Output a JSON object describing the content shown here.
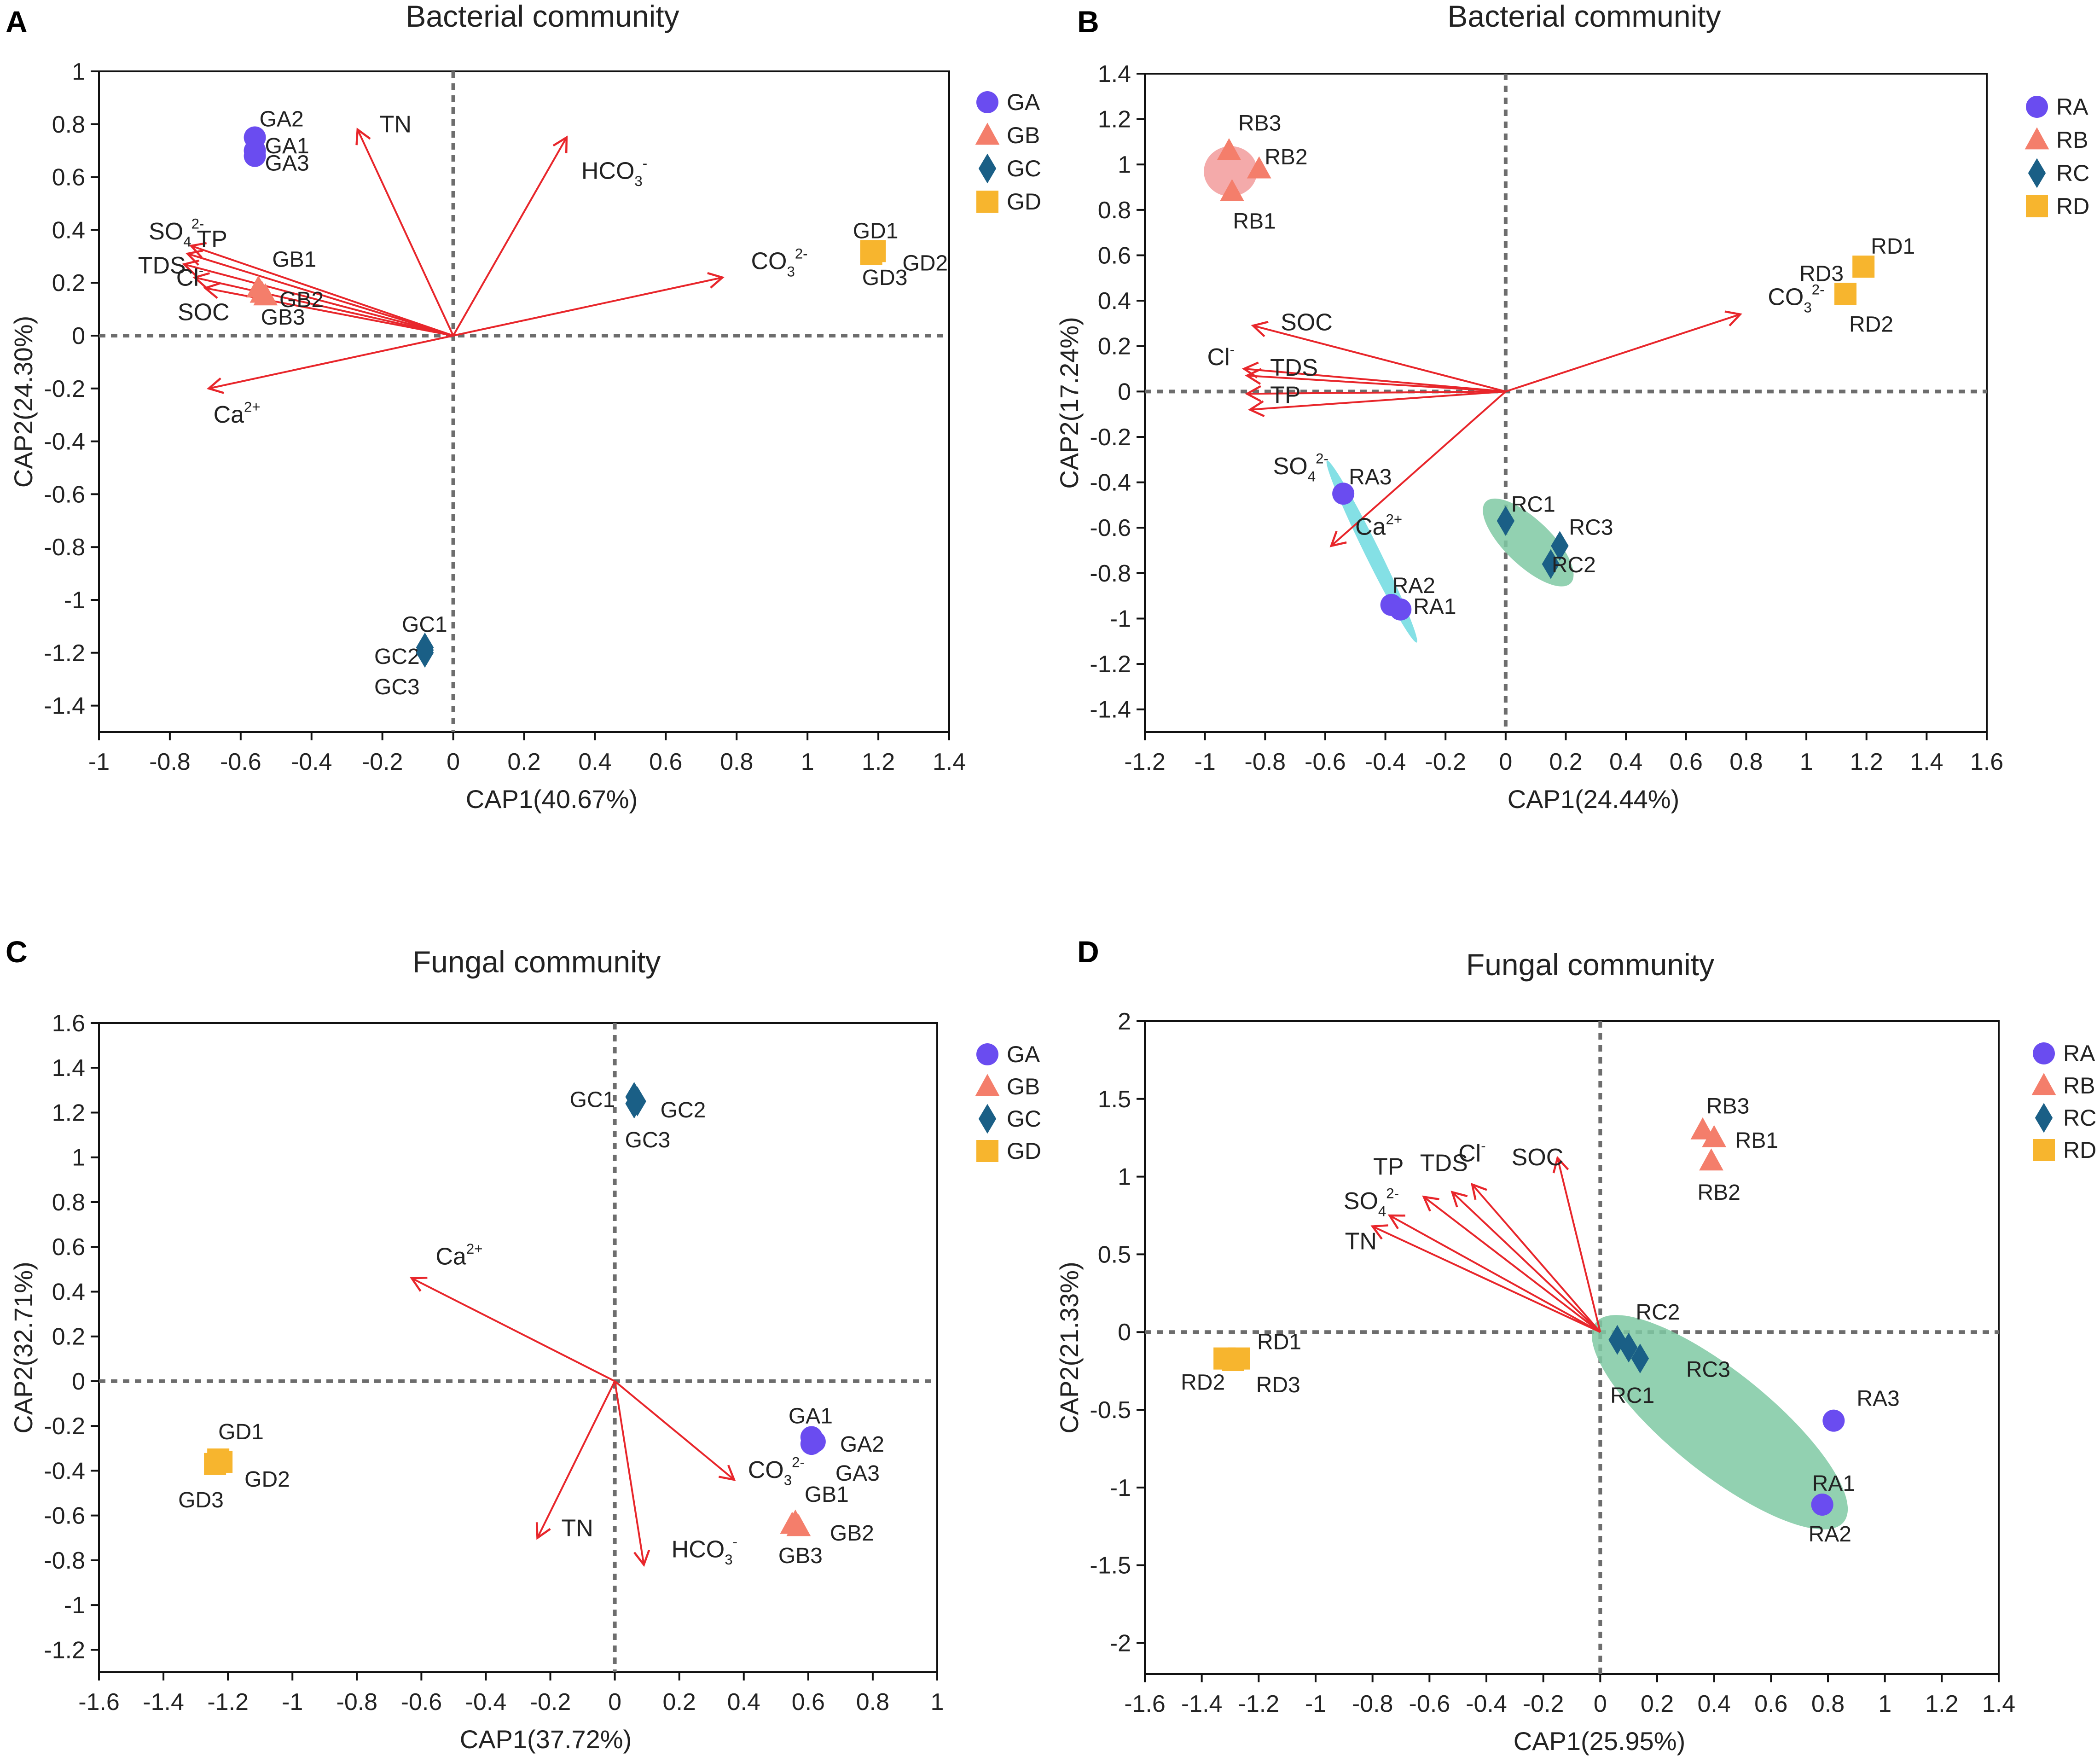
{
  "colors": {
    "arrow": "#e8262b",
    "circle": "#6a4cf0",
    "triangle": "#f47e6b",
    "diamond": "#1a5f86",
    "square": "#f7b52e",
    "dashed": "#6d6d6d",
    "ellipse_cyan": "#6fdbe0",
    "ellipse_green": "#7fc9a3",
    "ellipse_pink": "#f29b9b"
  },
  "chart_data": [
    {
      "panel_letter": "A",
      "type": "scatter",
      "title": "Bacterial community",
      "xlabel": "CAP1(40.67%)",
      "ylabel": "CAP2(24.30%)",
      "xlim": [
        -1,
        1.4
      ],
      "ylim": [
        -1.5,
        1
      ],
      "xticks": [
        "-1",
        "-0.8",
        "-0.6",
        "-0.4",
        "-0.2",
        "0",
        "0.2",
        "0.4",
        "0.6",
        "0.8",
        "1",
        "1.2",
        "1.4"
      ],
      "yticks": [
        "1",
        "0.8",
        "0.6",
        "0.4",
        "0.2",
        "0",
        "-0.2",
        "-0.4",
        "-0.6",
        "-0.8",
        "-1",
        "-1.2",
        "-1.4"
      ],
      "legend": [
        {
          "label": "GA",
          "shape": "circle"
        },
        {
          "label": "GB",
          "shape": "triangle"
        },
        {
          "label": "GC",
          "shape": "diamond"
        },
        {
          "label": "GD",
          "shape": "square"
        }
      ],
      "groups": [
        {
          "name": "GA",
          "shape": "circle",
          "points": [
            {
              "label": "GA2",
              "x": -0.56,
              "y": 0.75
            },
            {
              "label": "GA1",
              "x": -0.56,
              "y": 0.7
            },
            {
              "label": "GA3",
              "x": -0.56,
              "y": 0.68
            }
          ]
        },
        {
          "name": "GB",
          "shape": "triangle",
          "points": [
            {
              "label": "GB1",
              "x": -0.55,
              "y": 0.18
            },
            {
              "label": "GB2",
              "x": -0.54,
              "y": 0.16
            },
            {
              "label": "GB3",
              "x": -0.53,
              "y": 0.15
            }
          ]
        },
        {
          "name": "GC",
          "shape": "diamond",
          "points": [
            {
              "label": "GC1",
              "x": -0.08,
              "y": -1.18
            },
            {
              "label": "GC2",
              "x": -0.08,
              "y": -1.19
            },
            {
              "label": "GC3",
              "x": -0.08,
              "y": -1.2
            }
          ]
        },
        {
          "name": "GD",
          "shape": "square",
          "points": [
            {
              "label": "GD1",
              "x": 1.18,
              "y": 0.32
            },
            {
              "label": "GD2",
              "x": 1.19,
              "y": 0.32
            },
            {
              "label": "GD3",
              "x": 1.18,
              "y": 0.31
            }
          ]
        }
      ],
      "arrows": [
        {
          "name": "TN",
          "base": "TN",
          "sup": "",
          "sub": "",
          "x": -0.27,
          "y": 0.78
        },
        {
          "name": "HCO3-",
          "base": "HCO",
          "sub": "3",
          "sup": "-",
          "x": 0.32,
          "y": 0.75
        },
        {
          "name": "CO32-",
          "base": "CO",
          "sub": "3",
          "sup": "2-",
          "x": 0.76,
          "y": 0.22
        },
        {
          "name": "SO42-",
          "base": "SO",
          "sub": "4",
          "sup": "2-",
          "x": -0.74,
          "y": 0.34
        },
        {
          "name": "TP",
          "base": "TP",
          "sub": "",
          "sup": "",
          "x": -0.75,
          "y": 0.31
        },
        {
          "name": "TDS",
          "base": "TDS",
          "sub": "",
          "sup": "",
          "x": -0.76,
          "y": 0.27
        },
        {
          "name": "Cl-",
          "base": "Cl",
          "sub": "",
          "sup": "-",
          "x": -0.73,
          "y": 0.22
        },
        {
          "name": "SOC",
          "base": "SOC",
          "sub": "",
          "sup": "",
          "x": -0.7,
          "y": 0.18
        },
        {
          "name": "Ca2+",
          "base": "Ca",
          "sub": "",
          "sup": "2+",
          "x": -0.69,
          "y": -0.2
        }
      ]
    },
    {
      "panel_letter": "B",
      "type": "scatter",
      "title": "Bacterial community",
      "xlabel": "CAP1(24.44%)",
      "ylabel": "CAP2(17.24%)",
      "xlim": [
        -1.2,
        1.6
      ],
      "ylim": [
        -1.5,
        1.4
      ],
      "xticks": [
        "-1.2",
        "-1",
        "-0.8",
        "-0.6",
        "-0.4",
        "-0.2",
        "0",
        "0.2",
        "0.4",
        "0.6",
        "0.8",
        "1",
        "1.2",
        "1.4",
        "1.6"
      ],
      "yticks": [
        "1.4",
        "1.2",
        "1",
        "0.8",
        "0.6",
        "0.4",
        "0.2",
        "0",
        "-0.2",
        "-0.4",
        "-0.6",
        "-0.8",
        "-1",
        "-1.2",
        "-1.4"
      ],
      "legend": [
        {
          "label": "RA",
          "shape": "circle"
        },
        {
          "label": "RB",
          "shape": "triangle"
        },
        {
          "label": "RC",
          "shape": "diamond"
        },
        {
          "label": "RD",
          "shape": "square"
        }
      ],
      "groups": [
        {
          "name": "RA",
          "shape": "circle",
          "points": [
            {
              "label": "RA3",
              "x": -0.54,
              "y": -0.45
            },
            {
              "label": "RA2",
              "x": -0.38,
              "y": -0.94
            },
            {
              "label": "RA1",
              "x": -0.35,
              "y": -0.96
            }
          ]
        },
        {
          "name": "RB",
          "shape": "triangle",
          "points": [
            {
              "label": "RB3",
              "x": -0.92,
              "y": 1.06
            },
            {
              "label": "RB2",
              "x": -0.82,
              "y": 0.98
            },
            {
              "label": "RB1",
              "x": -0.91,
              "y": 0.88
            }
          ]
        },
        {
          "name": "RC",
          "shape": "diamond",
          "points": [
            {
              "label": "RC1",
              "x": 0.0,
              "y": -0.57
            },
            {
              "label": "RC3",
              "x": 0.18,
              "y": -0.68
            },
            {
              "label": "RC2",
              "x": 0.15,
              "y": -0.76
            }
          ]
        },
        {
          "name": "RD",
          "shape": "square",
          "points": [
            {
              "label": "RD3",
              "x": 1.13,
              "y": 0.43
            },
            {
              "label": "RD1",
              "x": 1.19,
              "y": 0.55
            },
            {
              "label": "RD2",
              "x": 1.13,
              "y": 0.43
            }
          ]
        }
      ],
      "ellipses": [
        {
          "group": "RA",
          "color_key": "ellipse_cyan"
        },
        {
          "group": "RB",
          "color_key": "ellipse_pink"
        },
        {
          "group": "RC",
          "color_key": "ellipse_green"
        }
      ],
      "arrows": [
        {
          "name": "CO32-",
          "base": "CO",
          "sub": "3",
          "sup": "2-",
          "x": 0.78,
          "y": 0.34
        },
        {
          "name": "SOC",
          "base": "SOC",
          "sub": "",
          "sup": "",
          "x": -0.84,
          "y": 0.29
        },
        {
          "name": "Cl-",
          "base": "Cl",
          "sub": "",
          "sup": "-",
          "x": -0.87,
          "y": 0.1
        },
        {
          "name": "TDS",
          "base": "TDS",
          "sub": "",
          "sup": "",
          "x": -0.86,
          "y": 0.07
        },
        {
          "name": "TP",
          "base": "TP",
          "sub": "",
          "sup": "",
          "x": -0.86,
          "y": -0.01
        },
        {
          "name": "SO42-",
          "base": "SO",
          "sub": "4",
          "sup": "2-",
          "x": -0.85,
          "y": -0.08
        },
        {
          "name": "Ca2+",
          "base": "Ca",
          "sub": "",
          "sup": "2+",
          "x": -0.58,
          "y": -0.68
        }
      ]
    },
    {
      "panel_letter": "C",
      "type": "scatter",
      "title": "Fungal community",
      "xlabel": "CAP1(37.72%)",
      "ylabel": "CAP2(32.71%)",
      "xlim": [
        -1.6,
        1
      ],
      "ylim": [
        -1.3,
        1.6
      ],
      "xticks": [
        "-1.6",
        "-1.4",
        "-1.2",
        "-1",
        "-0.8",
        "-0.6",
        "-0.4",
        "-0.2",
        "0",
        "0.2",
        "0.4",
        "0.6",
        "0.8",
        "1"
      ],
      "yticks": [
        "1.6",
        "1.4",
        "1.2",
        "1",
        "0.8",
        "0.6",
        "0.4",
        "0.2",
        "0",
        "-0.2",
        "-0.4",
        "-0.6",
        "-0.8",
        "-1",
        "-1.2"
      ],
      "legend": [
        {
          "label": "GA",
          "shape": "circle"
        },
        {
          "label": "GB",
          "shape": "triangle"
        },
        {
          "label": "GC",
          "shape": "diamond"
        },
        {
          "label": "GD",
          "shape": "square"
        }
      ],
      "groups": [
        {
          "name": "GA",
          "shape": "circle",
          "points": [
            {
              "label": "GA1",
              "x": 0.61,
              "y": -0.25
            },
            {
              "label": "GA2",
              "x": 0.62,
              "y": -0.27
            },
            {
              "label": "GA3",
              "x": 0.61,
              "y": -0.28
            }
          ]
        },
        {
          "name": "GB",
          "shape": "triangle",
          "points": [
            {
              "label": "GB1",
              "x": 0.56,
              "y": -0.63
            },
            {
              "label": "GB2",
              "x": 0.57,
              "y": -0.65
            },
            {
              "label": "GB3",
              "x": 0.55,
              "y": -0.64
            }
          ]
        },
        {
          "name": "GC",
          "shape": "diamond",
          "points": [
            {
              "label": "GC1",
              "x": 0.06,
              "y": 1.27
            },
            {
              "label": "GC2",
              "x": 0.07,
              "y": 1.25
            },
            {
              "label": "GC3",
              "x": 0.06,
              "y": 1.24
            }
          ]
        },
        {
          "name": "GD",
          "shape": "square",
          "points": [
            {
              "label": "GD1",
              "x": -1.23,
              "y": -0.35
            },
            {
              "label": "GD2",
              "x": -1.22,
              "y": -0.36
            },
            {
              "label": "GD3",
              "x": -1.24,
              "y": -0.37
            }
          ]
        }
      ],
      "arrows": [
        {
          "name": "Ca2+",
          "base": "Ca",
          "sub": "",
          "sup": "2+",
          "x": -0.63,
          "y": 0.46
        },
        {
          "name": "CO32-",
          "base": "CO",
          "sub": "3",
          "sup": "2-",
          "x": 0.37,
          "y": -0.44
        },
        {
          "name": "TN",
          "base": "TN",
          "sub": "",
          "sup": "",
          "x": -0.24,
          "y": -0.7
        },
        {
          "name": "HCO3-",
          "base": "HCO",
          "sub": "3",
          "sup": "-",
          "x": 0.09,
          "y": -0.82
        }
      ]
    },
    {
      "panel_letter": "D",
      "type": "scatter",
      "title": "Fungal community",
      "xlabel": "CAP1(25.95%)",
      "ylabel": "CAP2(21.33%)",
      "xlim": [
        -1.6,
        1.4
      ],
      "ylim": [
        -2.2,
        2
      ],
      "xticks": [
        "-1.6",
        "-1.4",
        "-1.2",
        "-1",
        "-0.8",
        "-0.6",
        "-0.4",
        "-0.2",
        "0",
        "0.2",
        "0.4",
        "0.6",
        "0.8",
        "1",
        "1.2",
        "1.4"
      ],
      "yticks": [
        "2",
        "1.5",
        "1",
        "0.5",
        "0",
        "-0.5",
        "-1",
        "-1.5",
        "-2"
      ],
      "legend": [
        {
          "label": "RA",
          "shape": "circle"
        },
        {
          "label": "RB",
          "shape": "triangle"
        },
        {
          "label": "RC",
          "shape": "diamond"
        },
        {
          "label": "RD",
          "shape": "square"
        }
      ],
      "groups": [
        {
          "name": "RA",
          "shape": "circle",
          "points": [
            {
              "label": "RA3",
              "x": 0.82,
              "y": -0.57
            },
            {
              "label": "RA1",
              "x": 0.78,
              "y": -1.11
            },
            {
              "label": "RA2",
              "x": 0.78,
              "y": -1.11
            }
          ]
        },
        {
          "name": "RB",
          "shape": "triangle",
          "points": [
            {
              "label": "RB3",
              "x": 0.36,
              "y": 1.3
            },
            {
              "label": "RB1",
              "x": 0.4,
              "y": 1.25
            },
            {
              "label": "RB2",
              "x": 0.39,
              "y": 1.1
            }
          ]
        },
        {
          "name": "RC",
          "shape": "diamond",
          "points": [
            {
              "label": "RC2",
              "x": 0.06,
              "y": -0.05
            },
            {
              "label": "RC3",
              "x": 0.14,
              "y": -0.17
            },
            {
              "label": "RC1",
              "x": 0.1,
              "y": -0.1
            }
          ]
        },
        {
          "name": "RD",
          "shape": "square",
          "points": [
            {
              "label": "RD1",
              "x": -1.27,
              "y": -0.17
            },
            {
              "label": "RD2",
              "x": -1.32,
              "y": -0.17
            },
            {
              "label": "RD3",
              "x": -1.29,
              "y": -0.18
            }
          ]
        }
      ],
      "ellipses": [
        {
          "group": "RA+RC",
          "color_key": "ellipse_green"
        }
      ],
      "arrows": [
        {
          "name": "SOC",
          "base": "SOC",
          "sub": "",
          "sup": "",
          "x": -0.15,
          "y": 1.12
        },
        {
          "name": "Cl-",
          "base": "Cl",
          "sub": "",
          "sup": "-",
          "x": -0.45,
          "y": 0.95
        },
        {
          "name": "TDS",
          "base": "TDS",
          "sub": "",
          "sup": "",
          "x": -0.52,
          "y": 0.9
        },
        {
          "name": "TP",
          "base": "TP",
          "sub": "",
          "sup": "",
          "x": -0.62,
          "y": 0.87
        },
        {
          "name": "SO42-",
          "base": "SO",
          "sub": "4",
          "sup": "2-",
          "x": -0.74,
          "y": 0.75
        },
        {
          "name": "TN",
          "base": "TN",
          "sub": "",
          "sup": "",
          "x": -0.8,
          "y": 0.68
        }
      ]
    }
  ]
}
